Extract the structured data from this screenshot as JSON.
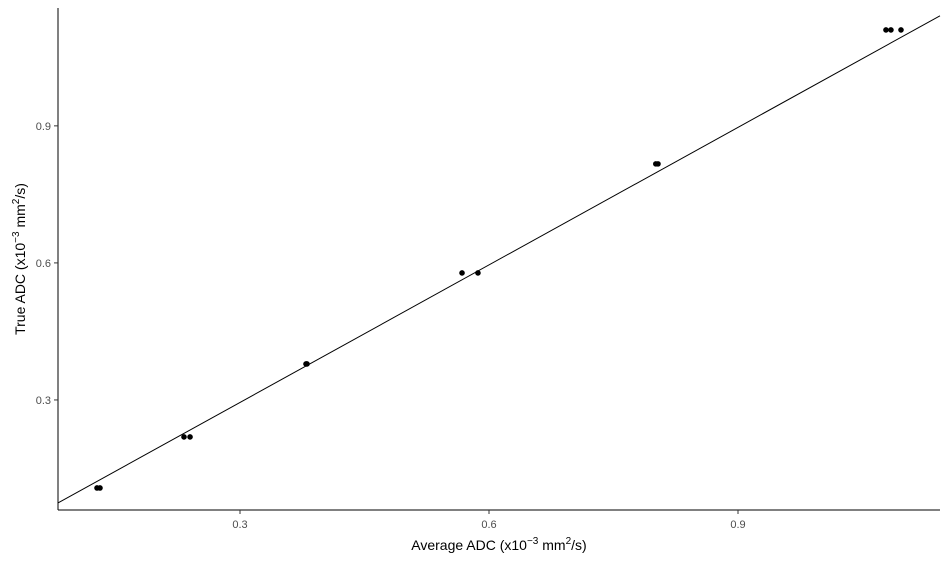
{
  "chart_data": {
    "type": "scatter",
    "x_label_parts": [
      "Average ADC (x10",
      "−3",
      " mm",
      "2",
      "/s)"
    ],
    "y_label_parts": [
      "True ADC (x10",
      "−3",
      " mm",
      "2",
      "/s)"
    ],
    "series": [
      {
        "color": "#000000",
        "x": [
          0.1277,
          0.1313,
          0.2325,
          0.2398,
          0.3795,
          0.3807,
          0.5675,
          0.5867,
          0.801,
          0.8036,
          1.0783,
          1.0843,
          1.0964
        ],
        "values": [
          0.1073,
          0.1073,
          0.219,
          0.219,
          0.3788,
          0.3788,
          0.578,
          0.578,
          0.8168,
          0.8168,
          1.11,
          1.11,
          1.11
        ]
      }
    ],
    "lines": [
      {
        "color": "#000000",
        "x": [
          0.0807,
          1.1434
        ],
        "values": [
          0.0745,
          1.1409
        ]
      }
    ],
    "xlim": [
      0.0807,
      1.1434
    ],
    "ylim": [
      0.0591,
      1.158
    ],
    "xticks": [
      0.3,
      0.6,
      0.9
    ],
    "yticks": [
      0.3,
      0.6,
      0.9
    ]
  }
}
